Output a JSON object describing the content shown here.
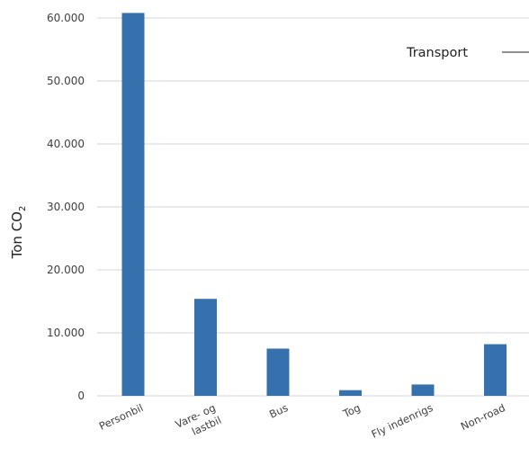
{
  "chart_data": {
    "type": "bar",
    "categories": [
      "Personbil",
      "Vare- og lastbil",
      "Bus",
      "Tog",
      "Fly indenrigs",
      "Non-road"
    ],
    "category_label_lines": [
      [
        "Personbil"
      ],
      [
        "Vare- og",
        "lastbil"
      ],
      [
        "Bus"
      ],
      [
        "Tog"
      ],
      [
        "Fly indenrigs"
      ],
      [
        "Non-road"
      ]
    ],
    "values": [
      60800,
      15400,
      7500,
      900,
      1800,
      8200
    ],
    "ylabel": "Ton CO",
    "ylabel_subscript": "2",
    "ylim": [
      0,
      60000
    ],
    "yticks": [
      0,
      10000,
      20000,
      30000,
      40000,
      50000,
      60000
    ],
    "ytick_labels": [
      "0",
      "10.000",
      "20.000",
      "30.000",
      "40.000",
      "50.000",
      "60.000"
    ],
    "legend_label": "Transport",
    "legend_position": "top-right",
    "grid": true,
    "bar_color": "#3670ad"
  }
}
